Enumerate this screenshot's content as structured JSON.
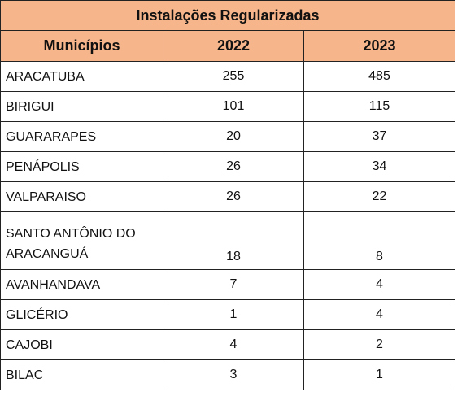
{
  "table": {
    "title": "Instalações Regularizadas",
    "header": [
      "Municípios",
      "2022",
      "2023"
    ],
    "rows": [
      [
        "ARACATUBA",
        255,
        485
      ],
      [
        "BIRIGUI",
        101,
        115
      ],
      [
        "GUARARAPES",
        20,
        37
      ],
      [
        "PENÁPOLIS",
        26,
        34
      ],
      [
        "VALPARAISO",
        26,
        22
      ],
      [
        "SANTO ANTÔNIO DO ARACANGUÁ",
        18,
        8
      ],
      [
        "AVANHANDAVA",
        7,
        4
      ],
      [
        "GLICÉRIO",
        1,
        4
      ],
      [
        "CAJOBI",
        4,
        2
      ],
      [
        "BILAC",
        3,
        1
      ]
    ]
  }
}
